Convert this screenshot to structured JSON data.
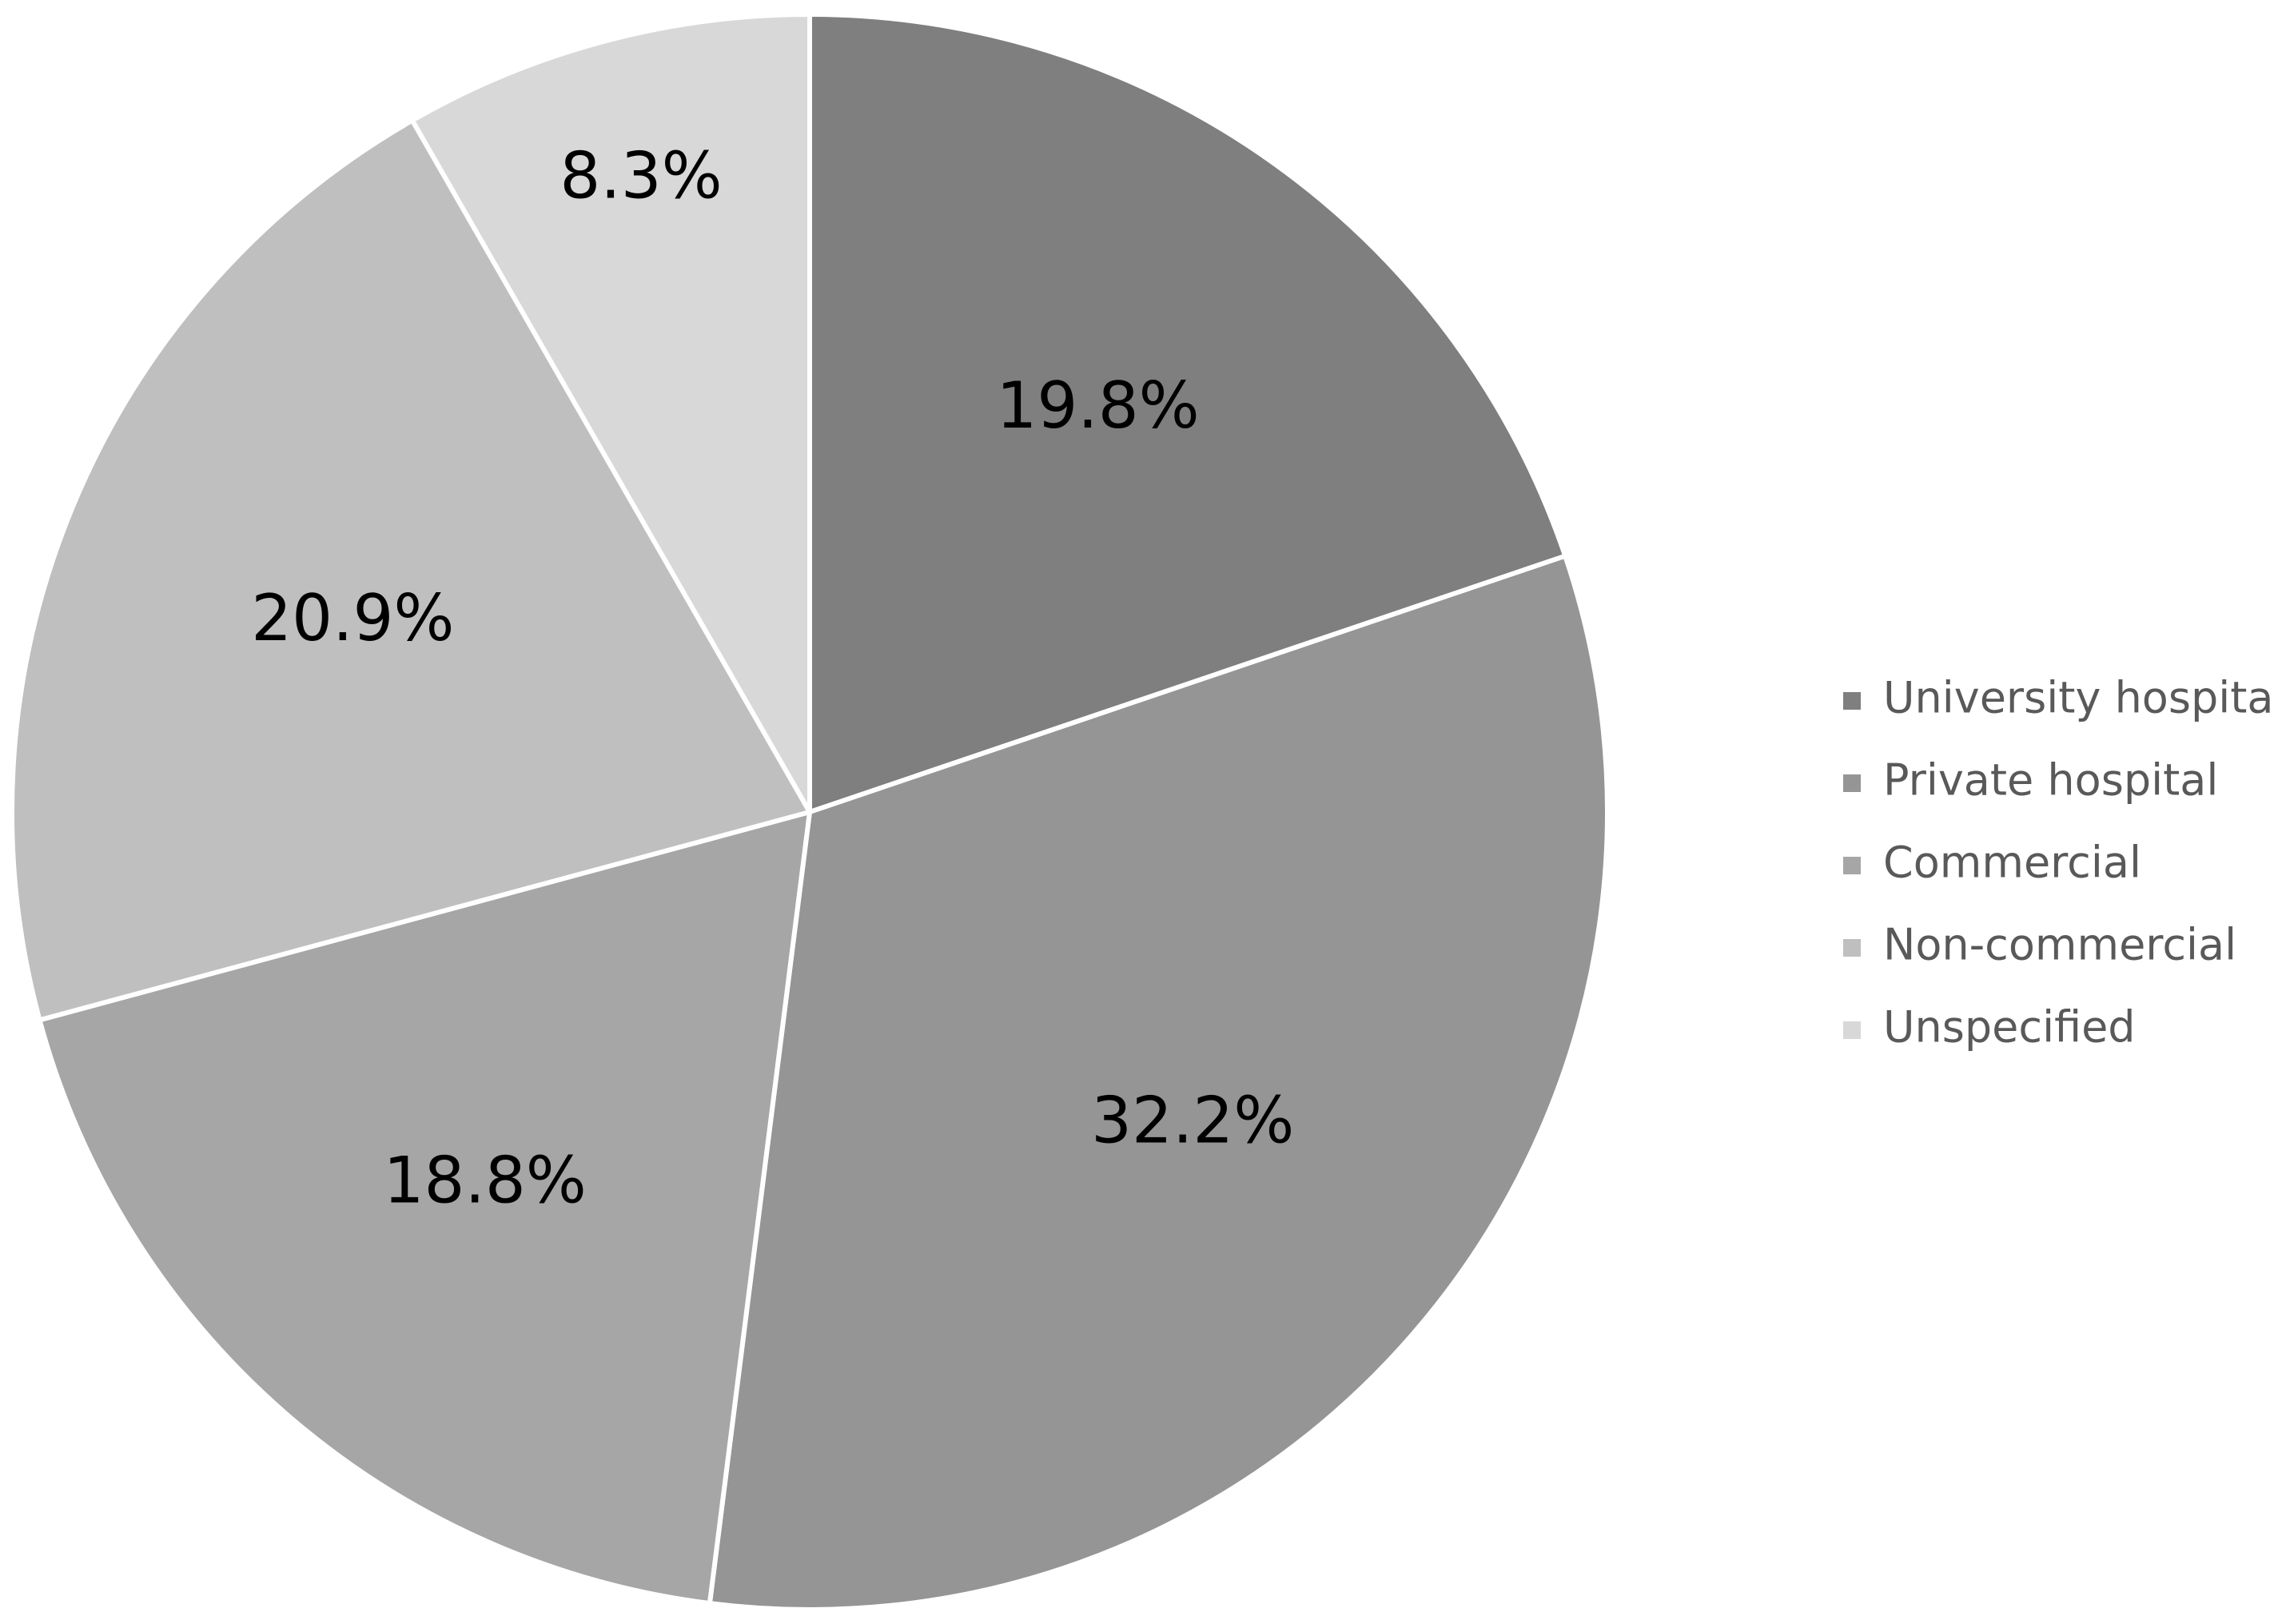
{
  "chart_data": {
    "type": "pie",
    "start_angle_deg": 0,
    "direction": "clockwise",
    "slices": [
      {
        "label": "University hospital",
        "value": 19.8,
        "value_label": "19.8%",
        "color": "#7f7f7f"
      },
      {
        "label": "Private hospital",
        "value": 32.2,
        "value_label": "32.2%",
        "color": "#959595"
      },
      {
        "label": "Commercial",
        "value": 18.8,
        "value_label": "18.8%",
        "color": "#a6a6a6"
      },
      {
        "label": "Non-commercial",
        "value": 20.9,
        "value_label": "20.9%",
        "color": "#bfbfbf"
      },
      {
        "label": "Unspecified",
        "value": 8.3,
        "value_label": "8.3%",
        "color": "#d8d8d8"
      }
    ],
    "legend": {
      "position": "right"
    },
    "separator_color": "#ffffff"
  }
}
